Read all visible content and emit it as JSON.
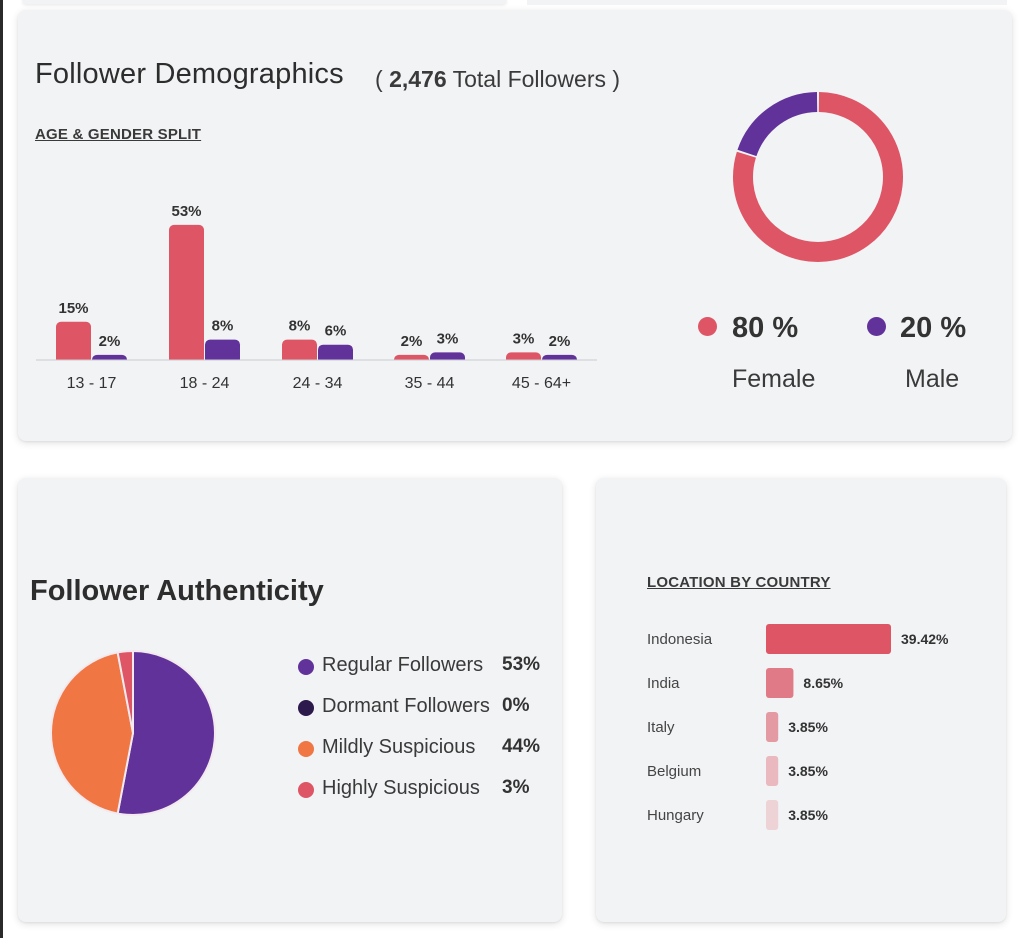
{
  "demographics": {
    "title": "Follower Demographics",
    "total_open": "(",
    "total_count": "2,476",
    "total_label": "Total Followers",
    "total_close": ")",
    "age_section_label": "AGE & GENDER SPLIT",
    "gender": [
      {
        "pct": "80 %",
        "name": "Female",
        "color": "#de5565"
      },
      {
        "pct": "20 %",
        "name": "Male",
        "color": "#62329b"
      }
    ]
  },
  "authenticity": {
    "title": "Follower Authenticity",
    "items": [
      {
        "name": "Regular Followers",
        "pct": "53%",
        "color": "#62329b"
      },
      {
        "name": "Dormant Followers",
        "pct": "0%",
        "color": "#2c1a4d"
      },
      {
        "name": "Mildly Suspicious",
        "pct": "44%",
        "color": "#f07644"
      },
      {
        "name": "Highly Suspicious",
        "pct": "3%",
        "color": "#de5565"
      }
    ]
  },
  "location": {
    "section_label": "LOCATION BY COUNTRY"
  },
  "colors": {
    "female": "#de5565",
    "male": "#62329b",
    "card_bg": "#f2f3f5",
    "text_dark": "#333333"
  },
  "chart_data": [
    {
      "type": "bar",
      "categories": [
        "13 - 17",
        "18 - 24",
        "24 - 34",
        "35 - 44",
        "45 - 64+"
      ],
      "series": [
        {
          "values": [
            15,
            53,
            8,
            2,
            3
          ],
          "labels": [
            "15%",
            "53%",
            "8%",
            "2%",
            "3%"
          ],
          "color": "#de5565"
        },
        {
          "values": [
            2,
            8,
            6,
            3,
            2
          ],
          "labels": [
            "2%",
            "8%",
            "6%",
            "3%",
            "2%"
          ],
          "color": "#62329b"
        }
      ],
      "grid": false
    },
    {
      "type": "pie",
      "style": "donut",
      "labels": [
        "Female",
        "Male"
      ],
      "values": [
        80,
        20
      ],
      "colors": [
        "#de5565",
        "#62329b"
      ]
    },
    {
      "type": "pie",
      "labels": [
        "Regular Followers",
        "Dormant Followers",
        "Mildly Suspicious",
        "Highly Suspicious"
      ],
      "values": [
        53,
        0,
        44,
        3
      ],
      "colors": [
        "#62329b",
        "#2c1a4d",
        "#f07644",
        "#de5565"
      ]
    },
    {
      "type": "bar",
      "orientation": "horizontal",
      "categories": [
        "Indonesia",
        "India",
        "Italy",
        "Belgium",
        "Hungary"
      ],
      "values": [
        39.42,
        8.65,
        3.85,
        3.85,
        3.85
      ],
      "labels": [
        "39.42%",
        "8.65%",
        "3.85%",
        "3.85%",
        "3.85%"
      ],
      "colors": [
        "#de5565",
        "#e07a86",
        "#e39aa3",
        "#e9b9bf",
        "#edd2d6"
      ]
    }
  ]
}
